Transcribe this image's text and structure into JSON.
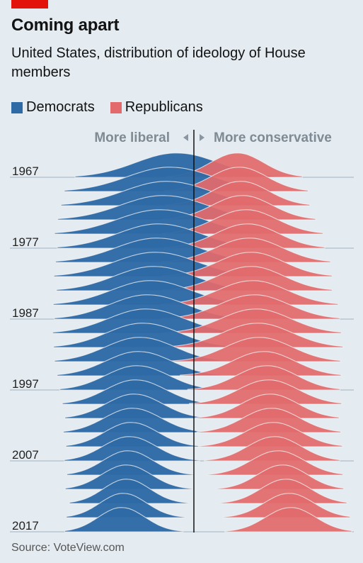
{
  "header": {
    "title": "Coming apart",
    "subtitle": "United States, distribution of ideology of House members"
  },
  "legend": [
    {
      "label": "Democrats",
      "color": "#2e6aa6"
    },
    {
      "label": "Republicans",
      "color": "#e26a6d"
    }
  ],
  "source": "Source: VoteView.com",
  "chart_data": {
    "type": "ridgeline",
    "annotations": {
      "left": "More liberal",
      "right": "More conservative"
    },
    "y_tick_labels": [
      "1967",
      "1977",
      "1987",
      "1997",
      "2007",
      "2017"
    ],
    "x": [
      "1967",
      "1969",
      "1971",
      "1973",
      "1975",
      "1977",
      "1979",
      "1981",
      "1983",
      "1985",
      "1987",
      "1989",
      "1991",
      "1993",
      "1995",
      "1997",
      "1999",
      "2001",
      "2003",
      "2005",
      "2007",
      "2009",
      "2011",
      "2013",
      "2015",
      "2017"
    ],
    "xlim": [
      -1,
      1
    ],
    "series": [
      {
        "name": "Democrats",
        "color": "#2e6aa6",
        "peak_ideology": [
          -0.08,
          -0.12,
          -0.14,
          -0.16,
          -0.18,
          -0.19,
          -0.2,
          -0.21,
          -0.22,
          -0.24,
          -0.26,
          -0.27,
          -0.29,
          -0.31,
          -0.32,
          -0.33,
          -0.34,
          -0.35,
          -0.36,
          -0.37,
          -0.38,
          -0.39,
          -0.4,
          -0.4,
          -0.42,
          -0.43
        ],
        "spread": [
          0.25,
          0.26,
          0.26,
          0.26,
          0.26,
          0.25,
          0.25,
          0.25,
          0.24,
          0.24,
          0.23,
          0.23,
          0.22,
          0.21,
          0.2,
          0.19,
          0.18,
          0.17,
          0.17,
          0.16,
          0.16,
          0.15,
          0.15,
          0.14,
          0.14,
          0.14
        ]
      },
      {
        "name": "Republicans",
        "color": "#e26a6d",
        "peak_ideology": [
          0.25,
          0.26,
          0.27,
          0.28,
          0.3,
          0.31,
          0.32,
          0.33,
          0.33,
          0.34,
          0.35,
          0.36,
          0.37,
          0.38,
          0.41,
          0.43,
          0.44,
          0.45,
          0.46,
          0.47,
          0.48,
          0.5,
          0.53,
          0.55,
          0.57,
          0.58
        ],
        "spread": [
          0.16,
          0.17,
          0.17,
          0.18,
          0.19,
          0.19,
          0.2,
          0.2,
          0.2,
          0.21,
          0.21,
          0.21,
          0.21,
          0.2,
          0.19,
          0.18,
          0.18,
          0.17,
          0.17,
          0.17,
          0.16,
          0.16,
          0.15,
          0.15,
          0.15,
          0.15
        ]
      }
    ]
  }
}
